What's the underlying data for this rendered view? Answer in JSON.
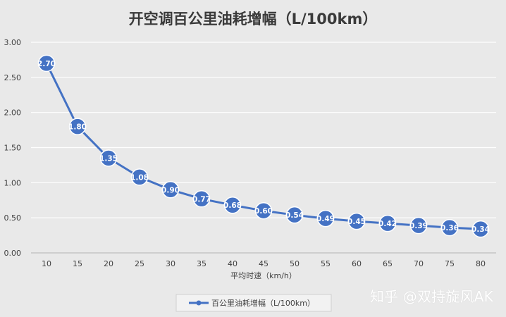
{
  "chart_data": {
    "type": "line",
    "title": "开空调百公里油耗增幅（L/100km）",
    "xlabel": "平均时速（km/h）",
    "ylabel": "",
    "categories": [
      10,
      15,
      20,
      25,
      30,
      35,
      40,
      45,
      50,
      55,
      60,
      65,
      70,
      75,
      80
    ],
    "series": [
      {
        "name": "百公里油耗增幅（L/100km）",
        "values": [
          2.7,
          1.8,
          1.35,
          1.08,
          0.9,
          0.77,
          0.68,
          0.6,
          0.54,
          0.49,
          0.45,
          0.42,
          0.39,
          0.36,
          0.34
        ],
        "color": "#4472c4"
      }
    ],
    "ylim": [
      0,
      3
    ],
    "yticks": [
      0,
      0.5,
      1.0,
      1.5,
      2.0,
      2.5,
      3.0
    ],
    "ytick_labels": [
      "0.00",
      "0.50",
      "1.00",
      "1.50",
      "2.00",
      "2.50",
      "3.00"
    ],
    "data_labels": [
      "2.70",
      "1.80",
      "1.35",
      "1.08",
      "0.90",
      "0.77",
      "0.68",
      "0.60",
      "0.54",
      "0.49",
      "0.45",
      "0.42",
      "0.39",
      "0.36",
      "0.34"
    ],
    "grid": true,
    "legend_position": "bottom",
    "background_color": "#e9e9e9"
  },
  "watermark": "知乎 @双持旋风AK"
}
